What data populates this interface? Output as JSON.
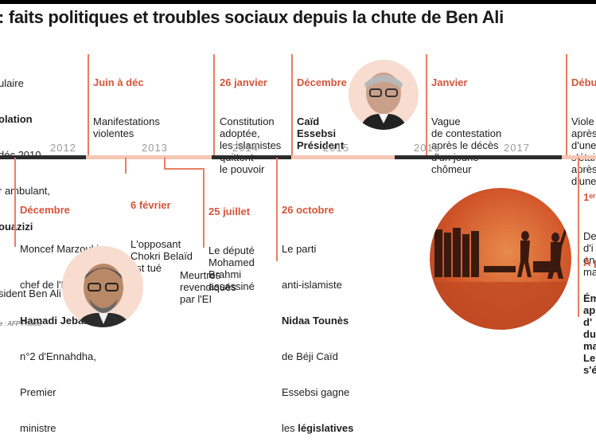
{
  "title": ": faits politiques et troubles sociaux depuis la chute de Ben Ali",
  "years": [
    "2012",
    "2013",
    "2014",
    "2015",
    "2016",
    "2017"
  ],
  "source": "rce : AFP Photos",
  "events_top": {
    "e1": {
      "lines": [
        "ulaire",
        "olation",
        "déc 2010",
        "r ambulant,",
        "ouazizi",
        "",
        "sident Ben Ali"
      ]
    },
    "e2": {
      "date": "Juin à déc",
      "text": "Manifestations\nviolentes"
    },
    "e3": {
      "date": "26 janvier",
      "text": "Constitution\nadoptée,\nles islamistes\nquittent\nle pouvoir"
    },
    "e4": {
      "date": "Décembre",
      "text": "Caïd\nEssebsi\nPrésident"
    },
    "e5": {
      "date": "Janvier",
      "text": "Vague\nde contestation\naprès le décès\nd'un jeune\nchômeur"
    },
    "e6": {
      "date": "Débu",
      "text": "Viole\naprès\nd'une\ns'étai\naprès\nd'une"
    }
  },
  "events_bottom": {
    "b1": {
      "date": "Décembre",
      "l1": "Moncef Marzouki",
      "l2": "chef de l'État",
      "l3": "Hamadi Jebali",
      "l3b": ",",
      "l4": "n°2 d'Ennahdha,",
      "l5": "Premier",
      "l6": "ministre"
    },
    "b2": {
      "date": "6 février",
      "text": "L'opposant\nChokri Belaïd\nest tué"
    },
    "b3": {
      "date": "25 juillet",
      "text": "Le député\nMohamed\nBrahmi\nassassiné"
    },
    "b3m": {
      "text": "Meurtres\nrevendiqués\npar l'EI"
    },
    "b4": {
      "date": "26 octobre",
      "l1": "Le parti",
      "l2": "anti-islamiste",
      "l3": "Nidaa Tounès",
      "l4": "de Béji Caïd",
      "l5": "Essebsi gagne",
      "l6a": "les ",
      "l6b": "législatives"
    },
    "b5": {
      "date": "1ᵉʳ",
      "text": "De\nd'i\nen\nma"
    },
    "b6": {
      "date": "À p",
      "text": "Ém\nap\nd'\ndu\nma\nLe\ns'é"
    }
  },
  "colors": {
    "accent": "#d4553b",
    "timeline_dark": "#2c2c2c",
    "timeline_light": "#f4c6b3",
    "connector": "#ea7e62"
  }
}
